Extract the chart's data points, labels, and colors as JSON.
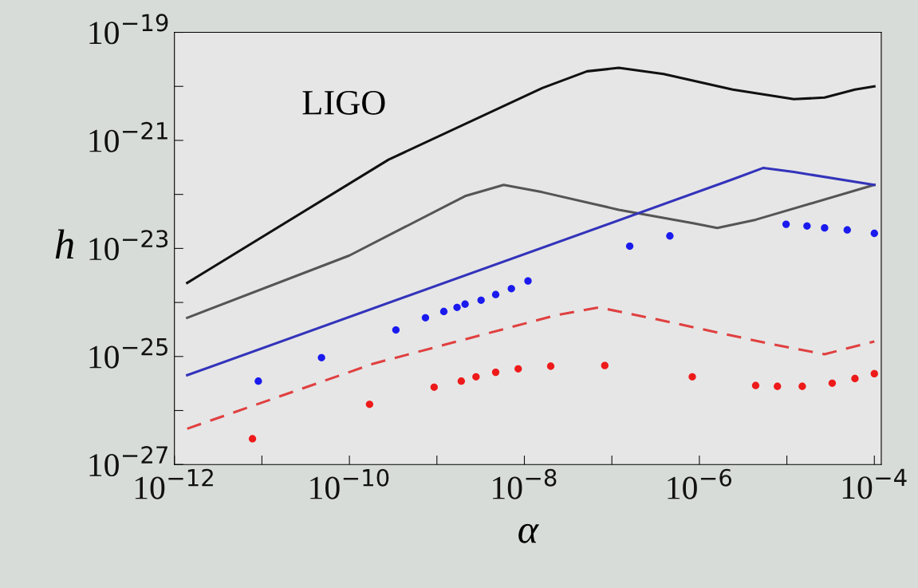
{
  "chart_data": {
    "type": "line",
    "xlabel": "α",
    "ylabel": "h",
    "log": "xy",
    "grid": false,
    "legend": false,
    "xlim": [
      1e-12,
      0.00012
    ],
    "ylim": [
      1e-27,
      1e-19
    ],
    "xticks": [
      {
        "value": 1e-12,
        "label": "10$^{−12}$"
      },
      {
        "value": 1e-11,
        "label": null
      },
      {
        "value": 1e-10,
        "label": "10$^{−10}$"
      },
      {
        "value": 1e-09,
        "label": null
      },
      {
        "value": 1e-08,
        "label": "10$^{−8}$"
      },
      {
        "value": 1e-07,
        "label": null
      },
      {
        "value": 1e-06,
        "label": "10$^{−6}$"
      },
      {
        "value": 1e-05,
        "label": null
      },
      {
        "value": 0.0001,
        "label": "10$^{−4}$"
      }
    ],
    "yticks": [
      {
        "value": 1e-27,
        "label": "10$^{−27}$"
      },
      {
        "value": 1e-26,
        "label": null
      },
      {
        "value": 1e-25,
        "label": "10$^{−25}$"
      },
      {
        "value": 1e-24,
        "label": null
      },
      {
        "value": 1e-23,
        "label": "10$^{−23}$"
      },
      {
        "value": 1e-22,
        "label": null
      },
      {
        "value": 1e-21,
        "label": "10$^{−21}$"
      },
      {
        "value": 1e-20,
        "label": null
      },
      {
        "value": 1e-19,
        "label": "10$^{−19}$"
      }
    ],
    "annotations": [
      "LIGO"
    ],
    "series": [
      {
        "color": "#111111",
        "line_style": "solid",
        "x": [
          1.4e-12,
          2.8e-10,
          1.6e-08,
          5.2e-08,
          1.2e-07,
          3.9e-07,
          2.4e-06,
          1.2e-05,
          2.7e-05,
          6e-05,
          0.0001
        ],
        "values": [
          2.3e-24,
          4.4e-22,
          9.3e-21,
          1.9e-20,
          2.2e-20,
          1.7e-20,
          8.7e-21,
          5.8e-21,
          6.2e-21,
          8.7e-21,
          1e-20
        ]
      },
      {
        "color": "#555555",
        "line_style": "solid",
        "x": [
          1.4e-12,
          1e-10,
          2.1e-09,
          5.8e-09,
          1.6e-08,
          1.2e-07,
          8.7e-07,
          1.6e-06,
          4.4e-06,
          0.0001
        ],
        "values": [
          5.2e-25,
          7.4e-24,
          9.3e-23,
          1.5e-22,
          1.1e-22,
          5.2e-23,
          2.9e-23,
          2.4e-23,
          3.4e-23,
          1.5e-22
        ]
      },
      {
        "color": "#3333bb",
        "line_style": "solid",
        "x": [
          1.4e-12,
          2.4e-06,
          5.4e-06,
          1.2e-05,
          0.0001
        ],
        "values": [
          4.5e-26,
          1.9e-22,
          3.1e-22,
          2.6e-22,
          1.5e-22
        ]
      },
      {
        "color": "#e04040",
        "line_style": "dashed",
        "x": [
          1.4e-12,
          1.9e-10,
          2.3e-08,
          7.1e-08,
          3.2e-07,
          6.6e-06,
          2.7e-05,
          0.0001
        ],
        "values": [
          4.6e-27,
          7.4e-26,
          5.8e-25,
          8.1e-25,
          4.9e-25,
          1.7e-25,
          1.1e-25,
          1.9e-25
        ]
      },
      {
        "type": "scatter",
        "color": "#1a1aee",
        "marker": "circle",
        "x": [
          9.1e-12,
          4.8e-11,
          3.4e-10,
          7.4e-10,
          1.2e-09,
          1.7e-09,
          2.1e-09,
          3.2e-09,
          4.7e-09,
          7.1e-09,
          1.1e-08,
          1.6e-07,
          4.6e-07,
          9.8e-06,
          1.7e-05,
          2.7e-05,
          4.9e-05,
          0.0001
        ],
        "values": [
          3.5e-26,
          9.5e-26,
          3.1e-25,
          5.2e-25,
          6.8e-25,
          8.1e-25,
          9.3e-25,
          1.1e-24,
          1.4e-24,
          1.8e-24,
          2.5e-24,
          1.1e-23,
          1.7e-23,
          2.8e-23,
          2.6e-23,
          2.4e-23,
          2.2e-23,
          1.9e-23
        ]
      },
      {
        "type": "scatter",
        "color": "#ee1a1a",
        "marker": "circle",
        "x": [
          7.8e-12,
          1.7e-10,
          9.3e-10,
          1.9e-09,
          2.8e-09,
          4.7e-09,
          8.5e-09,
          2e-08,
          8.3e-08,
          8.3e-07,
          4.4e-06,
          7.8e-06,
          1.5e-05,
          3.3e-05,
          6e-05,
          0.0001
        ],
        "values": [
          3e-27,
          1.3e-26,
          2.7e-26,
          3.5e-26,
          4.2e-26,
          5.1e-26,
          5.9e-26,
          6.6e-26,
          6.8e-26,
          4.2e-26,
          2.9e-26,
          2.8e-26,
          2.8e-26,
          3.2e-26,
          3.9e-26,
          4.8e-26
        ]
      }
    ]
  }
}
